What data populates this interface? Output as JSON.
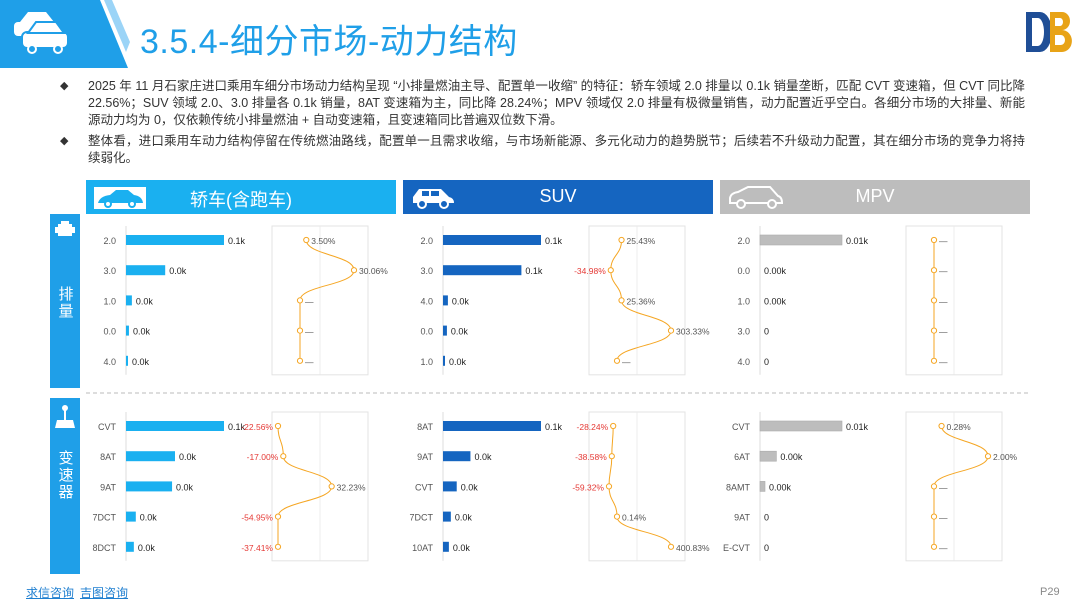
{
  "header": {
    "title": "3.5.4-细分市场-动力结构",
    "accent": "#1f9fe8"
  },
  "bullets": [
    "2025 年 11 月石家庄进口乘用车细分市场动力结构呈现 “小排量燃油主导、配置单一收缩” 的特征：轿车领域 2.0 排量以 0.1k 销量垄断，匹配 CVT 变速箱，但 CVT 同比降 22.56%；SUV 领域 2.0、3.0 排量各 0.1k 销量，8AT 变速箱为主，同比降 28.24%；MPV 领域仅 2.0 排量有极微量销售，动力配置近乎空白。各细分市场的大排量、新能源动力均为 0，仅依赖传统小排量燃油 + 自动变速箱，且变速箱同比普遍双位数下滑。",
    "整体看，进口乘用车动力结构停留在传统燃油路线，配置单一且需求收缩，与市场新能源、多元化动力的趋势脱节；后续若不升级动力配置，其在细分市场的竞争力将持续弱化。"
  ],
  "side_labels": {
    "engine": "排量",
    "gearbox": "变速器"
  },
  "segments": [
    {
      "key": "sedan",
      "label": "轿车(含跑车)",
      "color": "#1ab0f0",
      "icon": "sedan-icon"
    },
    {
      "key": "suv",
      "label": "SUV",
      "color": "#1565c0",
      "icon": "suv-icon"
    },
    {
      "key": "mpv",
      "label": "MPV",
      "color": "#bdbdbd",
      "icon": "mpv-icon"
    }
  ],
  "colors": {
    "line": "#f5a623",
    "negative": "#e53935",
    "positive": "#555555"
  },
  "footer": {
    "link1": "求信咨询",
    "link2": "吉图咨询",
    "page": "P29"
  },
  "chart_data": [
    {
      "type": "bar",
      "segment": "轿车(含跑车)",
      "group": "排量",
      "categories": [
        "2.0",
        "3.0",
        "1.0",
        "0.0",
        "4.0"
      ],
      "values": [
        0.1,
        0.04,
        0.006,
        0.003,
        0.002
      ],
      "value_labels": [
        "0.1k",
        "0.0k",
        "0.0k",
        "0.0k",
        "0.0k"
      ],
      "yoy_labels": [
        "3.50%",
        "30.06%",
        "—",
        "—",
        "—"
      ],
      "yoy": [
        3.5,
        30.06,
        0,
        0,
        0
      ]
    },
    {
      "type": "bar",
      "segment": "SUV",
      "group": "排量",
      "categories": [
        "2.0",
        "3.0",
        "4.0",
        "0.0",
        "1.0"
      ],
      "values": [
        0.1,
        0.08,
        0.005,
        0.004,
        0.002
      ],
      "value_labels": [
        "0.1k",
        "0.1k",
        "0.0k",
        "0.0k",
        "0.0k"
      ],
      "yoy_labels": [
        "25.43%",
        "-34.98%",
        "25.36%",
        "303.33%",
        "—"
      ],
      "yoy": [
        25.43,
        -34.98,
        25.36,
        303.33,
        0
      ]
    },
    {
      "type": "bar",
      "segment": "MPV",
      "group": "排量",
      "categories": [
        "2.0",
        "0.0",
        "1.0",
        "3.0",
        "4.0"
      ],
      "values": [
        0.01,
        0.0,
        0.0,
        0.0,
        0.0
      ],
      "value_labels": [
        "0.01k",
        "0.00k",
        "0.00k",
        "0",
        "0"
      ],
      "yoy_labels": [
        "—",
        "—",
        "—",
        "—",
        "—"
      ],
      "yoy": [
        0,
        0,
        0,
        0,
        0
      ]
    },
    {
      "type": "bar",
      "segment": "轿车(含跑车)",
      "group": "变速器",
      "categories": [
        "CVT",
        "8AT",
        "9AT",
        "7DCT",
        "8DCT"
      ],
      "values": [
        0.1,
        0.05,
        0.047,
        0.01,
        0.008
      ],
      "value_labels": [
        "0.1k",
        "0.0k",
        "0.0k",
        "0.0k",
        "0.0k"
      ],
      "yoy_labels": [
        "-22.56%",
        "-17.00%",
        "32.23%",
        "-54.95%",
        "-37.41%"
      ],
      "yoy": [
        -22.56,
        -17.0,
        32.23,
        -54.95,
        -37.41
      ]
    },
    {
      "type": "bar",
      "segment": "SUV",
      "group": "变速器",
      "categories": [
        "8AT",
        "9AT",
        "CVT",
        "7DCT",
        "10AT"
      ],
      "values": [
        0.1,
        0.028,
        0.014,
        0.008,
        0.006
      ],
      "value_labels": [
        "0.1k",
        "0.0k",
        "0.0k",
        "0.0k",
        "0.0k"
      ],
      "yoy_labels": [
        "-28.24%",
        "-38.58%",
        "-59.32%",
        "0.14%",
        "400.83%"
      ],
      "yoy": [
        -28.24,
        -38.58,
        -59.32,
        0.14,
        400.83
      ]
    },
    {
      "type": "bar",
      "segment": "MPV",
      "group": "变速器",
      "categories": [
        "CVT",
        "6AT",
        "8AMT",
        "9AT",
        "E-CVT"
      ],
      "values": [
        0.01,
        0.002,
        0.0005,
        0.0,
        0.0
      ],
      "value_labels": [
        "0.01k",
        "0.00k",
        "0.00k",
        "0",
        "0"
      ],
      "yoy_labels": [
        "0.28%",
        "2.00%",
        "—",
        "—",
        "—"
      ],
      "yoy": [
        0.28,
        2.0,
        0,
        0,
        0
      ]
    }
  ]
}
